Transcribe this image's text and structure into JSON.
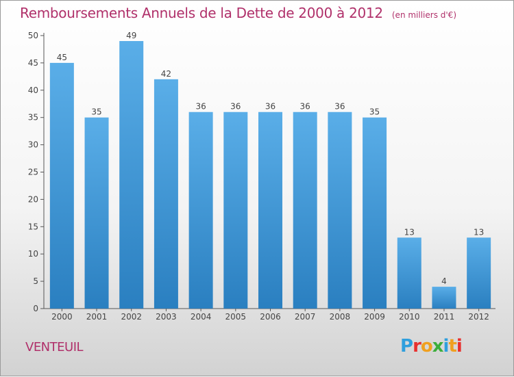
{
  "chart_data": {
    "type": "bar",
    "title": "Remboursements Annuels de la Dette de 2000 à 2012",
    "subtitle": "(en milliers d'€)",
    "categories": [
      "2000",
      "2001",
      "2002",
      "2003",
      "2004",
      "2005",
      "2006",
      "2007",
      "2008",
      "2009",
      "2010",
      "2011",
      "2012"
    ],
    "values": [
      45,
      35,
      49,
      42,
      36,
      36,
      36,
      36,
      36,
      35,
      13,
      4,
      13
    ],
    "ylim": [
      0,
      50
    ],
    "yticks": [
      0,
      5,
      10,
      15,
      20,
      25,
      30,
      35,
      40,
      45,
      50
    ],
    "grid": false,
    "bar_color_top": "#5aaee8",
    "bar_color_bottom": "#2a7fc0"
  },
  "footer": {
    "place": "VENTEUIL",
    "brand": "Proxiti"
  },
  "colors": {
    "title": "#b0306a",
    "brand_letters": [
      "#2f9fdd",
      "#e8302e",
      "#f0a020",
      "#3cae3c",
      "#2f9fdd",
      "#f0a020",
      "#e8302e"
    ]
  }
}
